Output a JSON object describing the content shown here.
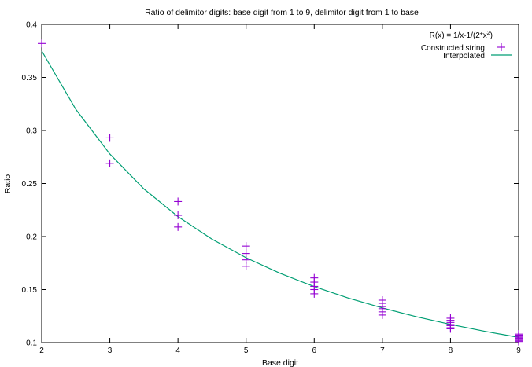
{
  "chart_data": {
    "type": "scatter",
    "title": "Ratio of delimitor digits: base digit from 1 to 9, delimitor digit from 1 to base",
    "xlabel": "Base digit",
    "ylabel": "Ratio",
    "xlim": [
      2,
      9
    ],
    "ylim": [
      0.1,
      0.4
    ],
    "xticks": [
      2,
      3,
      4,
      5,
      6,
      7,
      8,
      9
    ],
    "yticks": [
      0.1,
      0.15,
      0.2,
      0.25,
      0.3,
      0.35,
      0.4
    ],
    "grid": false,
    "legend_position": "top-right",
    "legend_formula_prefix": "R(x) = 1/x-1/(2*x",
    "legend_formula_exponent": "2",
    "legend_formula_suffix": ")",
    "series": [
      {
        "name": "Constructed string",
        "type": "scatter",
        "marker": "plus",
        "color": "#9400d3",
        "points": [
          [
            2,
            0.382
          ],
          [
            3,
            0.293
          ],
          [
            3,
            0.269
          ],
          [
            4,
            0.233
          ],
          [
            4,
            0.22
          ],
          [
            4,
            0.209
          ],
          [
            5,
            0.191
          ],
          [
            5,
            0.184
          ],
          [
            5,
            0.178
          ],
          [
            5,
            0.172
          ],
          [
            6,
            0.161
          ],
          [
            6,
            0.157
          ],
          [
            6,
            0.153
          ],
          [
            6,
            0.15
          ],
          [
            6,
            0.146
          ],
          [
            7,
            0.14
          ],
          [
            7,
            0.137
          ],
          [
            7,
            0.134
          ],
          [
            7,
            0.132
          ],
          [
            7,
            0.129
          ],
          [
            7,
            0.126
          ],
          [
            8,
            0.123
          ],
          [
            8,
            0.121
          ],
          [
            8,
            0.119
          ],
          [
            8,
            0.117
          ],
          [
            8,
            0.116
          ],
          [
            8,
            0.114
          ],
          [
            8,
            0.113
          ],
          [
            9,
            0.108
          ],
          [
            9,
            0.107
          ],
          [
            9,
            0.106
          ],
          [
            9,
            0.105
          ],
          [
            9,
            0.104
          ],
          [
            9,
            0.103
          ],
          [
            9,
            0.102
          ],
          [
            9,
            0.101
          ]
        ]
      },
      {
        "name": "Interpolated",
        "type": "line",
        "color": "#009e73",
        "x": [
          2,
          2.5,
          3,
          3.5,
          4,
          4.5,
          5,
          5.5,
          6,
          6.5,
          7,
          7.5,
          8,
          8.5,
          9
        ],
        "values": [
          0.375,
          0.32,
          0.2778,
          0.2449,
          0.2188,
          0.1975,
          0.18,
          0.1653,
          0.1528,
          0.142,
          0.1327,
          0.1244,
          0.1172,
          0.1107,
          0.1049
        ]
      }
    ]
  }
}
